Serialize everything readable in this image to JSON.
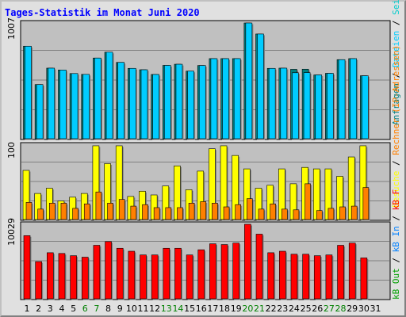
{
  "title": "Tages-Statistik im Monat Juni 2020",
  "colors": {
    "background": "#e0e0e0",
    "panel": "#c0c0c0",
    "gridline": "#808080",
    "title": "#0000ff",
    "hits": "#00cccc",
    "files": "#00ccff",
    "pages": "#008080",
    "visits": "#ffff00",
    "sites": "#ff8000",
    "kbin": "#0080ff",
    "kbout": "#00a000",
    "kbf": "#ff0000",
    "weekday_label": "#000000",
    "weekend_label": "#008000"
  },
  "days": [
    "1",
    "2",
    "3",
    "4",
    "5",
    "6",
    "7",
    "8",
    "9",
    "10",
    "11",
    "12",
    "13",
    "14",
    "15",
    "16",
    "17",
    "18",
    "19",
    "20",
    "21",
    "22",
    "23",
    "24",
    "25",
    "26",
    "27",
    "28",
    "29",
    "30",
    "31"
  ],
  "weekend_days": [
    "6",
    "7",
    "13",
    "14",
    "20",
    "21",
    "27",
    "28"
  ],
  "legend_right": {
    "top": [
      {
        "text": "Anfragen",
        "color": "#008080"
      },
      {
        "text": " / ",
        "color": "#000000"
      },
      {
        "text": "Dateien",
        "color": "#00ccff"
      },
      {
        "text": " / ",
        "color": "#000000"
      },
      {
        "text": "Seiten",
        "color": "#00cccc"
      }
    ],
    "middle": [
      {
        "text": "Besuche",
        "color": "#ffff00"
      },
      {
        "text": " / ",
        "color": "#000000"
      },
      {
        "text": "Rechner (IP-Adressen)",
        "color": "#ff8000"
      }
    ],
    "bottom": [
      {
        "text": "kB Out",
        "color": "#00a000"
      },
      {
        "text": " / ",
        "color": "#000000"
      },
      {
        "text": "kB In",
        "color": "#0080ff"
      },
      {
        "text": " / ",
        "color": "#000000"
      },
      {
        "text": "kB F",
        "color": "#ff0000"
      }
    ]
  },
  "chart_data": [
    {
      "type": "bar",
      "panel": "top",
      "max_label": "1007",
      "ylim": [
        0,
        1007
      ],
      "categories": [
        "1",
        "2",
        "3",
        "4",
        "5",
        "6",
        "7",
        "8",
        "9",
        "10",
        "11",
        "12",
        "13",
        "14",
        "15",
        "16",
        "17",
        "18",
        "19",
        "20",
        "21",
        "22",
        "23",
        "24",
        "25",
        "26",
        "27",
        "28",
        "29",
        "30",
        "31"
      ],
      "series": [
        {
          "name": "Anfragen",
          "color": "#008080",
          "values": [
            805,
            471,
            614,
            598,
            567,
            560,
            702,
            753,
            664,
            612,
            600,
            559,
            638,
            648,
            588,
            637,
            697,
            697,
            697,
            1007,
            911,
            612,
            614,
            604,
            605,
            555,
            569,
            688,
            697,
            548,
            null
          ]
        },
        {
          "name": "Dateien",
          "color": "#00ccff",
          "values": [
            805,
            471,
            614,
            598,
            567,
            560,
            702,
            753,
            664,
            612,
            600,
            559,
            638,
            648,
            588,
            637,
            697,
            697,
            697,
            1007,
            911,
            612,
            614,
            574,
            575,
            555,
            569,
            688,
            697,
            548,
            null
          ]
        }
      ]
    },
    {
      "type": "bar",
      "panel": "middle",
      "max_label": "100",
      "ylim": [
        0,
        100
      ],
      "categories": [
        "1",
        "2",
        "3",
        "4",
        "5",
        "6",
        "7",
        "8",
        "9",
        "10",
        "11",
        "12",
        "13",
        "14",
        "15",
        "16",
        "17",
        "18",
        "19",
        "20",
        "21",
        "22",
        "23",
        "24",
        "25",
        "26",
        "27",
        "28",
        "29",
        "30",
        "31"
      ],
      "series": [
        {
          "name": "Besuche",
          "color": "#ffff00",
          "values": [
            66,
            35,
            42,
            25,
            30,
            35,
            99,
            75,
            99,
            31,
            38,
            33,
            45,
            72,
            40,
            65,
            95,
            99,
            86,
            68,
            42,
            46,
            68,
            48,
            70,
            68,
            68,
            58,
            84,
            99,
            0
          ]
        },
        {
          "name": "Rechner (IP-Adressen)",
          "color": "#ff8000",
          "values": [
            23,
            14,
            22,
            22,
            15,
            21,
            37,
            22,
            27,
            18,
            20,
            16,
            16,
            16,
            22,
            24,
            22,
            17,
            20,
            28,
            14,
            21,
            14,
            13,
            48,
            12,
            15,
            17,
            18,
            43,
            0
          ]
        }
      ]
    },
    {
      "type": "bar",
      "panel": "bottom",
      "max_label": "10029",
      "ylim": [
        0,
        10029
      ],
      "categories": [
        "1",
        "2",
        "3",
        "4",
        "5",
        "6",
        "7",
        "8",
        "9",
        "10",
        "11",
        "12",
        "13",
        "14",
        "15",
        "16",
        "17",
        "18",
        "19",
        "20",
        "21",
        "22",
        "23",
        "24",
        "25",
        "26",
        "27",
        "28",
        "29",
        "30",
        "31"
      ],
      "series": [
        {
          "name": "kB F",
          "color": "#ff0000",
          "values": [
            8500,
            5000,
            6200,
            6100,
            5800,
            5600,
            7200,
            7700,
            6800,
            6400,
            5900,
            5900,
            6800,
            6800,
            5900,
            6600,
            7400,
            7300,
            7500,
            10029,
            8700,
            6200,
            6400,
            6000,
            6000,
            5800,
            5900,
            7200,
            7500,
            5500,
            0
          ]
        }
      ]
    }
  ]
}
